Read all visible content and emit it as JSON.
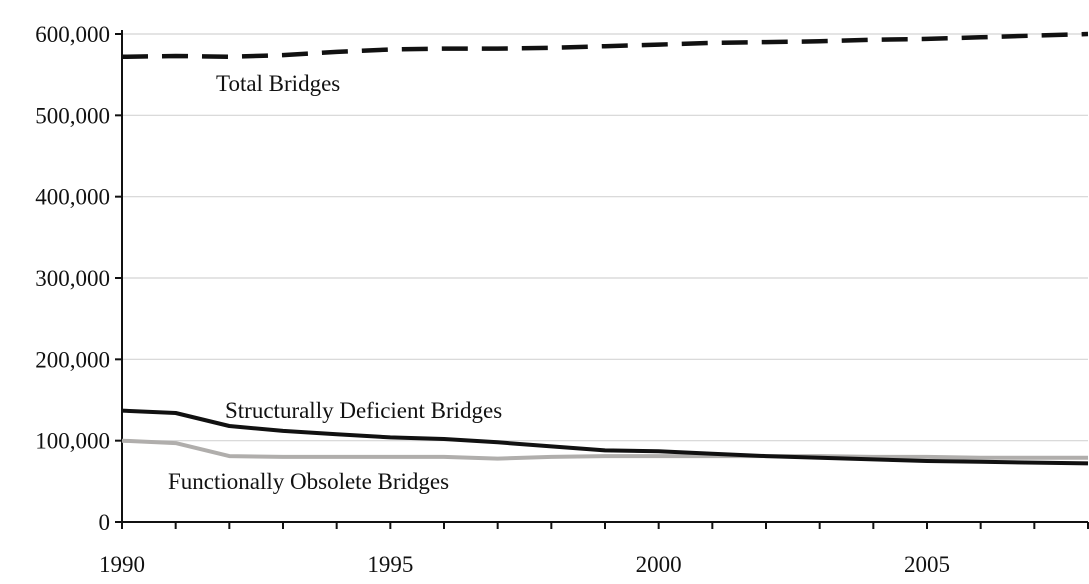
{
  "chart_data": {
    "type": "line",
    "title": "",
    "xlabel": "",
    "ylabel": "",
    "xlim": [
      1990,
      2008
    ],
    "ylim": [
      0,
      600000
    ],
    "x_ticks": [
      1990,
      1995,
      2000,
      2005
    ],
    "x_tick_labels": [
      "1990",
      "1995",
      "2000",
      "2005"
    ],
    "y_ticks": [
      0,
      100000,
      200000,
      300000,
      400000,
      500000,
      600000
    ],
    "y_tick_labels": [
      "0",
      "100,000",
      "200,000",
      "300,000",
      "400,000",
      "500,000",
      "600,000"
    ],
    "grid": "horizontal",
    "legend": "none",
    "x": [
      1990,
      1991,
      1992,
      1993,
      1994,
      1995,
      1996,
      1997,
      1998,
      1999,
      2000,
      2001,
      2002,
      2003,
      2004,
      2005,
      2006,
      2007,
      2008
    ],
    "series": [
      {
        "name": "Total Bridges",
        "label_text": "Total Bridges",
        "color": "#111111",
        "style": "dashed",
        "values": [
          572000,
          573000,
          572000,
          574000,
          578000,
          581000,
          582000,
          582000,
          583000,
          585000,
          587000,
          589000,
          590000,
          591000,
          593000,
          594000,
          596000,
          598000,
          600000
        ]
      },
      {
        "name": "Structurally Deficient Bridges",
        "label_text": "Structurally Deficient Bridges",
        "color": "#111111",
        "style": "solid",
        "values": [
          137000,
          134000,
          118000,
          112000,
          108000,
          104000,
          102000,
          98000,
          93000,
          88000,
          87000,
          84000,
          81000,
          79000,
          77000,
          75000,
          74000,
          73000,
          72000
        ]
      },
      {
        "name": "Functionally Obsolete Bridges",
        "label_text": "Functionally Obsolete Bridges",
        "color": "#b0aeac",
        "style": "solid",
        "values": [
          100000,
          97000,
          81000,
          80000,
          80000,
          80000,
          80000,
          78000,
          80000,
          81000,
          81000,
          81000,
          81000,
          81000,
          80000,
          80000,
          79000,
          79000,
          79000
        ]
      }
    ]
  }
}
